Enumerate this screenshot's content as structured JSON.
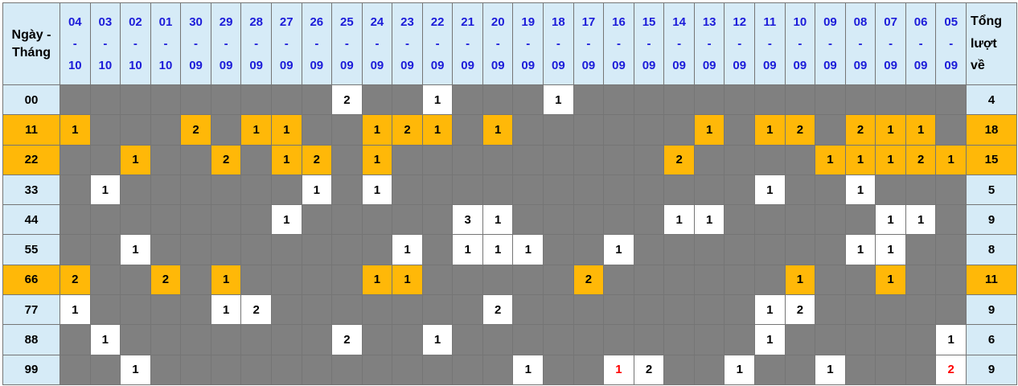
{
  "table": {
    "corner_line1": "Ngày -",
    "corner_line2": "Tháng",
    "total_header": [
      "Tổng",
      "lượt",
      "về"
    ],
    "date_separator": "-",
    "columns": [
      {
        "d": "04",
        "m": "10"
      },
      {
        "d": "03",
        "m": "10"
      },
      {
        "d": "02",
        "m": "10"
      },
      {
        "d": "01",
        "m": "10"
      },
      {
        "d": "30",
        "m": "09"
      },
      {
        "d": "29",
        "m": "09"
      },
      {
        "d": "28",
        "m": "09"
      },
      {
        "d": "27",
        "m": "09"
      },
      {
        "d": "26",
        "m": "09"
      },
      {
        "d": "25",
        "m": "09"
      },
      {
        "d": "24",
        "m": "09"
      },
      {
        "d": "23",
        "m": "09"
      },
      {
        "d": "22",
        "m": "09"
      },
      {
        "d": "21",
        "m": "09"
      },
      {
        "d": "20",
        "m": "09"
      },
      {
        "d": "19",
        "m": "09"
      },
      {
        "d": "18",
        "m": "09"
      },
      {
        "d": "17",
        "m": "09"
      },
      {
        "d": "16",
        "m": "09"
      },
      {
        "d": "15",
        "m": "09"
      },
      {
        "d": "14",
        "m": "09"
      },
      {
        "d": "13",
        "m": "09"
      },
      {
        "d": "12",
        "m": "09"
      },
      {
        "d": "11",
        "m": "09"
      },
      {
        "d": "10",
        "m": "09"
      },
      {
        "d": "09",
        "m": "09"
      },
      {
        "d": "08",
        "m": "09"
      },
      {
        "d": "07",
        "m": "09"
      },
      {
        "d": "06",
        "m": "09"
      },
      {
        "d": "05",
        "m": "09"
      }
    ],
    "rows": [
      {
        "label": "00",
        "highlight": false,
        "total": 4,
        "cells": [
          {
            "date": "25-09",
            "value": 2
          },
          {
            "date": "22-09",
            "value": 1
          },
          {
            "date": "18-09",
            "value": 1
          }
        ]
      },
      {
        "label": "11",
        "highlight": true,
        "total": 18,
        "cells": [
          {
            "date": "04-10",
            "value": 1
          },
          {
            "date": "30-09",
            "value": 2
          },
          {
            "date": "28-09",
            "value": 1
          },
          {
            "date": "27-09",
            "value": 1
          },
          {
            "date": "24-09",
            "value": 1
          },
          {
            "date": "23-09",
            "value": 2
          },
          {
            "date": "22-09",
            "value": 1
          },
          {
            "date": "20-09",
            "value": 1
          },
          {
            "date": "13-09",
            "value": 1
          },
          {
            "date": "11-09",
            "value": 1
          },
          {
            "date": "10-09",
            "value": 2
          },
          {
            "date": "08-09",
            "value": 2
          },
          {
            "date": "07-09",
            "value": 1
          },
          {
            "date": "06-09",
            "value": 1
          }
        ]
      },
      {
        "label": "22",
        "highlight": true,
        "total": 15,
        "cells": [
          {
            "date": "02-10",
            "value": 1
          },
          {
            "date": "29-09",
            "value": 2
          },
          {
            "date": "27-09",
            "value": 1
          },
          {
            "date": "26-09",
            "value": 2
          },
          {
            "date": "24-09",
            "value": 1
          },
          {
            "date": "14-09",
            "value": 2
          },
          {
            "date": "09-09",
            "value": 1
          },
          {
            "date": "08-09",
            "value": 1
          },
          {
            "date": "07-09",
            "value": 1
          },
          {
            "date": "06-09",
            "value": 2
          },
          {
            "date": "05-09",
            "value": 1
          }
        ]
      },
      {
        "label": "33",
        "highlight": false,
        "total": 5,
        "cells": [
          {
            "date": "03-10",
            "value": 1
          },
          {
            "date": "26-09",
            "value": 1
          },
          {
            "date": "24-09",
            "value": 1
          },
          {
            "date": "11-09",
            "value": 1
          },
          {
            "date": "08-09",
            "value": 1
          }
        ]
      },
      {
        "label": "44",
        "highlight": false,
        "total": 9,
        "cells": [
          {
            "date": "27-09",
            "value": 1
          },
          {
            "date": "21-09",
            "value": 3
          },
          {
            "date": "20-09",
            "value": 1
          },
          {
            "date": "14-09",
            "value": 1
          },
          {
            "date": "13-09",
            "value": 1
          },
          {
            "date": "07-09",
            "value": 1
          },
          {
            "date": "06-09",
            "value": 1
          }
        ]
      },
      {
        "label": "55",
        "highlight": false,
        "total": 8,
        "cells": [
          {
            "date": "02-10",
            "value": 1
          },
          {
            "date": "23-09",
            "value": 1
          },
          {
            "date": "21-09",
            "value": 1
          },
          {
            "date": "20-09",
            "value": 1
          },
          {
            "date": "19-09",
            "value": 1
          },
          {
            "date": "16-09",
            "value": 1
          },
          {
            "date": "08-09",
            "value": 1
          },
          {
            "date": "07-09",
            "value": 1
          }
        ]
      },
      {
        "label": "66",
        "highlight": true,
        "total": 11,
        "cells": [
          {
            "date": "04-10",
            "value": 2
          },
          {
            "date": "01-10",
            "value": 2
          },
          {
            "date": "29-09",
            "value": 1
          },
          {
            "date": "24-09",
            "value": 1
          },
          {
            "date": "23-09",
            "value": 1
          },
          {
            "date": "17-09",
            "value": 2
          },
          {
            "date": "10-09",
            "value": 1
          },
          {
            "date": "07-09",
            "value": 1
          }
        ]
      },
      {
        "label": "77",
        "highlight": false,
        "total": 9,
        "cells": [
          {
            "date": "04-10",
            "value": 1
          },
          {
            "date": "29-09",
            "value": 1
          },
          {
            "date": "28-09",
            "value": 2
          },
          {
            "date": "20-09",
            "value": 2
          },
          {
            "date": "11-09",
            "value": 1
          },
          {
            "date": "10-09",
            "value": 2
          }
        ]
      },
      {
        "label": "88",
        "highlight": false,
        "total": 6,
        "cells": [
          {
            "date": "03-10",
            "value": 1
          },
          {
            "date": "25-09",
            "value": 2
          },
          {
            "date": "22-09",
            "value": 1
          },
          {
            "date": "11-09",
            "value": 1
          },
          {
            "date": "05-09",
            "value": 1
          }
        ]
      },
      {
        "label": "99",
        "highlight": false,
        "total": 9,
        "cells": [
          {
            "date": "02-10",
            "value": 1
          },
          {
            "date": "19-09",
            "value": 1
          },
          {
            "date": "16-09",
            "value": 1,
            "red": true
          },
          {
            "date": "15-09",
            "value": 2
          },
          {
            "date": "12-09",
            "value": 1
          },
          {
            "date": "09-09",
            "value": 1
          },
          {
            "date": "05-09",
            "value": 2,
            "red": true
          }
        ]
      }
    ],
    "colors": {
      "orange": "#FFB808",
      "gray_cell": "#808080",
      "header_bg": "#D6EBF7",
      "blue_text": "#1C1CD9",
      "red_text": "#FE0000",
      "black_text": "#000000",
      "border": "#757575"
    }
  }
}
